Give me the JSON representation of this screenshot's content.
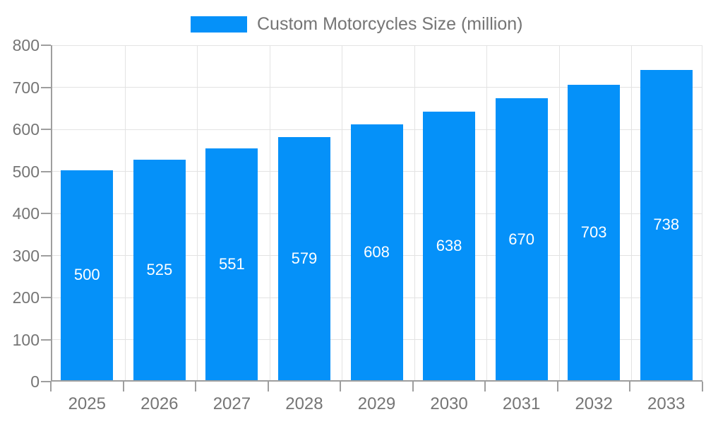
{
  "chart_data": {
    "type": "bar",
    "title": "Custom Motorcycles Size (million)",
    "categories": [
      "2025",
      "2026",
      "2027",
      "2028",
      "2029",
      "2030",
      "2031",
      "2032",
      "2033"
    ],
    "values": [
      500,
      525,
      551,
      579,
      608,
      638,
      670,
      703,
      738
    ],
    "xlabel": "",
    "ylabel": "",
    "ylim": [
      0,
      800
    ],
    "y_ticks": [
      0,
      100,
      200,
      300,
      400,
      500,
      600,
      700,
      800
    ],
    "grid": true,
    "bar_labels_visible": true,
    "legend": {
      "label": "Custom Motorcycles Size (million)",
      "position": "top"
    }
  },
  "colors": {
    "bar": "#0591f9",
    "axis": "#9e9e9e",
    "grid": "#e3e3e3",
    "label": "#757575",
    "bar_label": "#ffffff",
    "background": "#ffffff"
  }
}
